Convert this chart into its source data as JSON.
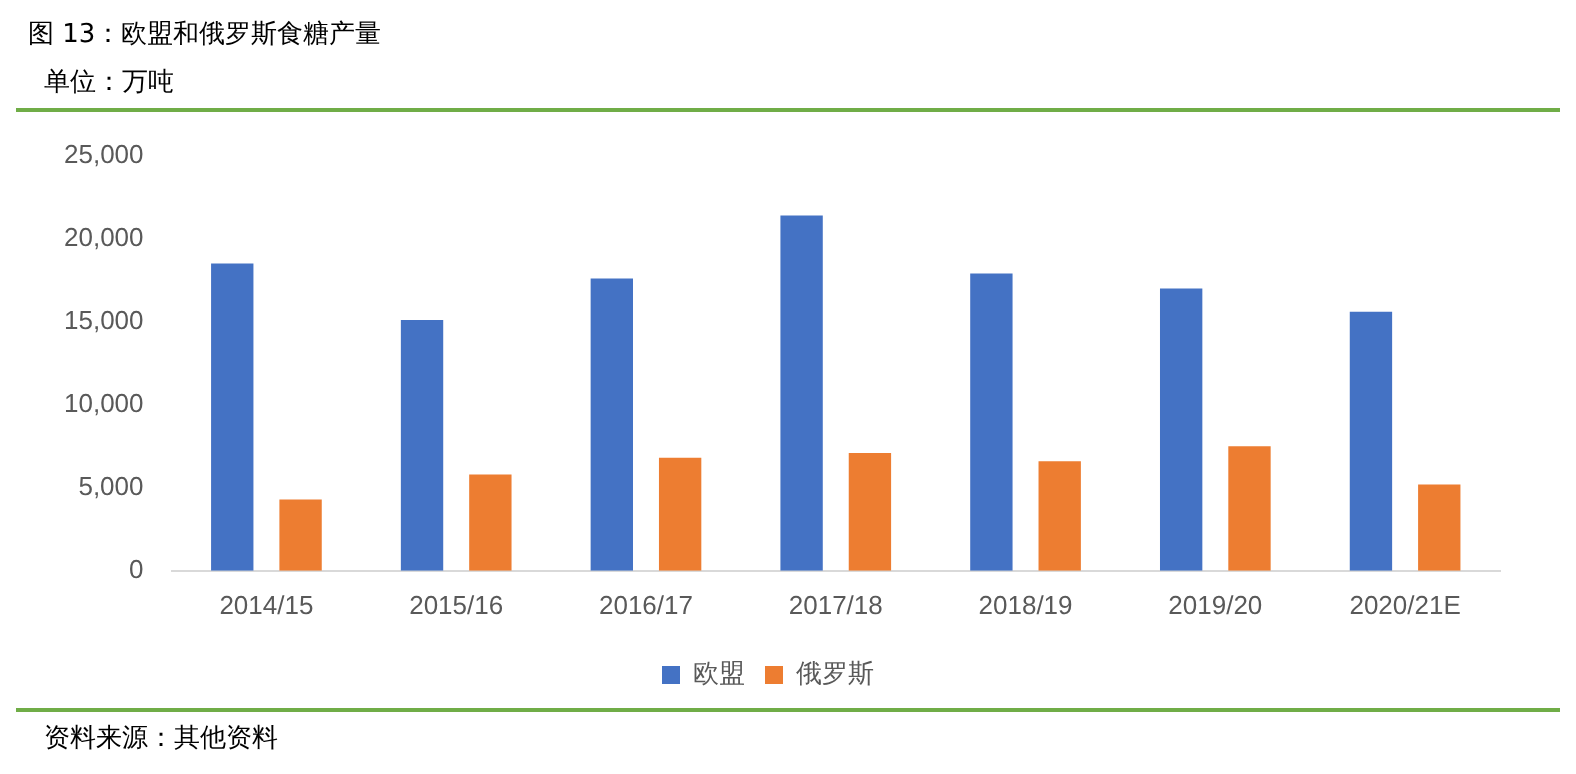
{
  "chart_data": {
    "type": "bar",
    "title": "图 13：欧盟和俄罗斯食糖产量",
    "subtitle": "单位：万吨",
    "annotations": [
      "资料来源：其他资料"
    ],
    "categories": [
      "2014/15",
      "2015/16",
      "2016/17",
      "2017/18",
      "2018/19",
      "2019/20",
      "2020/21E"
    ],
    "series": [
      {
        "name": "欧盟",
        "color": "#4472c4",
        "values": [
          18500,
          15100,
          17600,
          21400,
          17900,
          17000,
          15600
        ]
      },
      {
        "name": "俄罗斯",
        "color": "#ed7d31",
        "values": [
          4300,
          5800,
          6800,
          7100,
          6600,
          7500,
          5200
        ]
      }
    ],
    "ylim": [
      0,
      25000
    ],
    "yticks": [
      {
        "value": 0,
        "label": "0"
      },
      {
        "value": 5000,
        "label": "5,000"
      },
      {
        "value": 10000,
        "label": "10,000"
      },
      {
        "value": 15000,
        "label": "15,000"
      },
      {
        "value": 20000,
        "label": "20,000"
      },
      {
        "value": 25000,
        "label": "25,000"
      }
    ],
    "grid": false,
    "legend": "bottom"
  }
}
